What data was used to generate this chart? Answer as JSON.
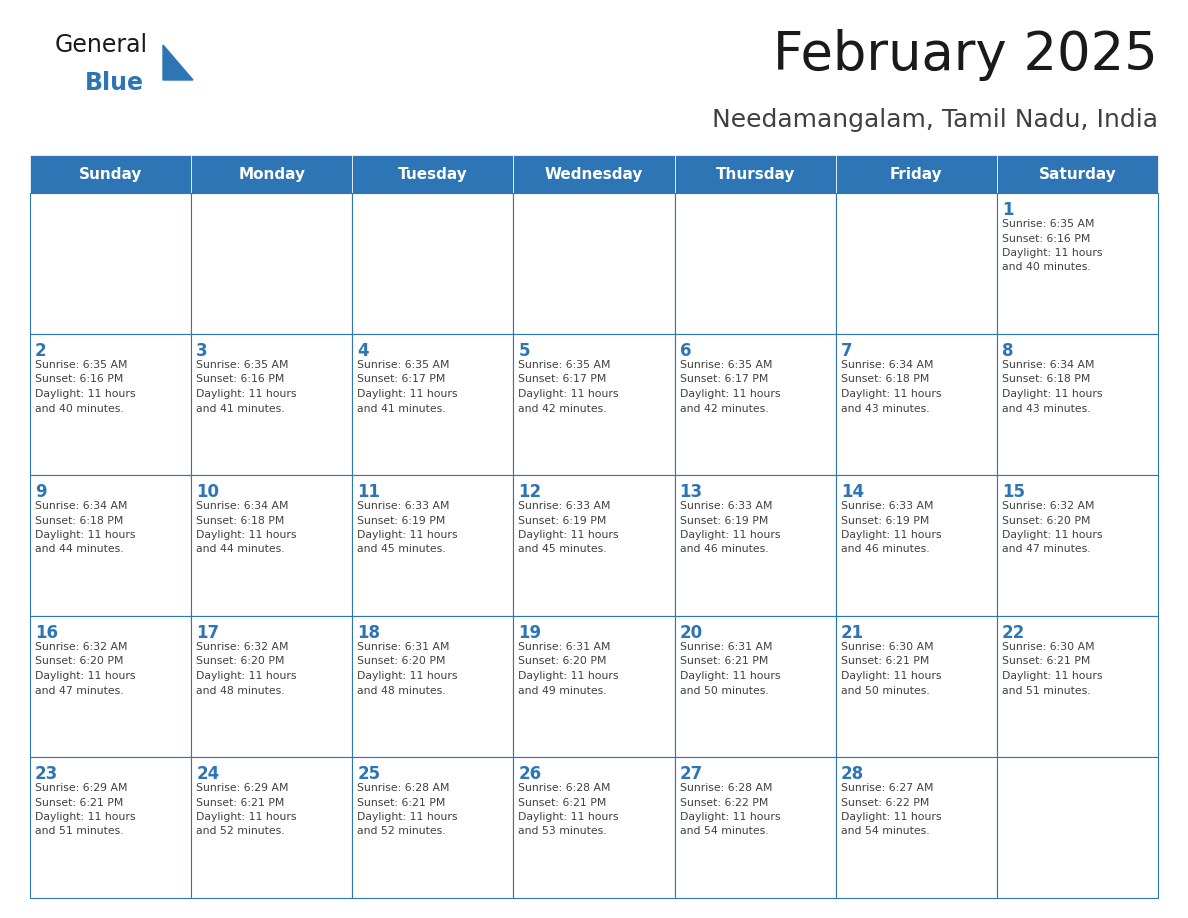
{
  "title": "February 2025",
  "subtitle": "Needamangalam, Tamil Nadu, India",
  "header_bg": "#2E75B6",
  "header_text_color": "#FFFFFF",
  "cell_bg_even": "#F2F2F2",
  "cell_bg_odd": "#FFFFFF",
  "cell_bg": "#FFFFFF",
  "border_color": "#2E75B6",
  "day_number_color": "#2E75B6",
  "cell_text_color": "#404040",
  "title_color": "#1a1a1a",
  "subtitle_color": "#404040",
  "days_of_week": [
    "Sunday",
    "Monday",
    "Tuesday",
    "Wednesday",
    "Thursday",
    "Friday",
    "Saturday"
  ],
  "weeks": [
    [
      {
        "day": null,
        "info": null
      },
      {
        "day": null,
        "info": null
      },
      {
        "day": null,
        "info": null
      },
      {
        "day": null,
        "info": null
      },
      {
        "day": null,
        "info": null
      },
      {
        "day": null,
        "info": null
      },
      {
        "day": 1,
        "info": "Sunrise: 6:35 AM\nSunset: 6:16 PM\nDaylight: 11 hours\nand 40 minutes."
      }
    ],
    [
      {
        "day": 2,
        "info": "Sunrise: 6:35 AM\nSunset: 6:16 PM\nDaylight: 11 hours\nand 40 minutes."
      },
      {
        "day": 3,
        "info": "Sunrise: 6:35 AM\nSunset: 6:16 PM\nDaylight: 11 hours\nand 41 minutes."
      },
      {
        "day": 4,
        "info": "Sunrise: 6:35 AM\nSunset: 6:17 PM\nDaylight: 11 hours\nand 41 minutes."
      },
      {
        "day": 5,
        "info": "Sunrise: 6:35 AM\nSunset: 6:17 PM\nDaylight: 11 hours\nand 42 minutes."
      },
      {
        "day": 6,
        "info": "Sunrise: 6:35 AM\nSunset: 6:17 PM\nDaylight: 11 hours\nand 42 minutes."
      },
      {
        "day": 7,
        "info": "Sunrise: 6:34 AM\nSunset: 6:18 PM\nDaylight: 11 hours\nand 43 minutes."
      },
      {
        "day": 8,
        "info": "Sunrise: 6:34 AM\nSunset: 6:18 PM\nDaylight: 11 hours\nand 43 minutes."
      }
    ],
    [
      {
        "day": 9,
        "info": "Sunrise: 6:34 AM\nSunset: 6:18 PM\nDaylight: 11 hours\nand 44 minutes."
      },
      {
        "day": 10,
        "info": "Sunrise: 6:34 AM\nSunset: 6:18 PM\nDaylight: 11 hours\nand 44 minutes."
      },
      {
        "day": 11,
        "info": "Sunrise: 6:33 AM\nSunset: 6:19 PM\nDaylight: 11 hours\nand 45 minutes."
      },
      {
        "day": 12,
        "info": "Sunrise: 6:33 AM\nSunset: 6:19 PM\nDaylight: 11 hours\nand 45 minutes."
      },
      {
        "day": 13,
        "info": "Sunrise: 6:33 AM\nSunset: 6:19 PM\nDaylight: 11 hours\nand 46 minutes."
      },
      {
        "day": 14,
        "info": "Sunrise: 6:33 AM\nSunset: 6:19 PM\nDaylight: 11 hours\nand 46 minutes."
      },
      {
        "day": 15,
        "info": "Sunrise: 6:32 AM\nSunset: 6:20 PM\nDaylight: 11 hours\nand 47 minutes."
      }
    ],
    [
      {
        "day": 16,
        "info": "Sunrise: 6:32 AM\nSunset: 6:20 PM\nDaylight: 11 hours\nand 47 minutes."
      },
      {
        "day": 17,
        "info": "Sunrise: 6:32 AM\nSunset: 6:20 PM\nDaylight: 11 hours\nand 48 minutes."
      },
      {
        "day": 18,
        "info": "Sunrise: 6:31 AM\nSunset: 6:20 PM\nDaylight: 11 hours\nand 48 minutes."
      },
      {
        "day": 19,
        "info": "Sunrise: 6:31 AM\nSunset: 6:20 PM\nDaylight: 11 hours\nand 49 minutes."
      },
      {
        "day": 20,
        "info": "Sunrise: 6:31 AM\nSunset: 6:21 PM\nDaylight: 11 hours\nand 50 minutes."
      },
      {
        "day": 21,
        "info": "Sunrise: 6:30 AM\nSunset: 6:21 PM\nDaylight: 11 hours\nand 50 minutes."
      },
      {
        "day": 22,
        "info": "Sunrise: 6:30 AM\nSunset: 6:21 PM\nDaylight: 11 hours\nand 51 minutes."
      }
    ],
    [
      {
        "day": 23,
        "info": "Sunrise: 6:29 AM\nSunset: 6:21 PM\nDaylight: 11 hours\nand 51 minutes."
      },
      {
        "day": 24,
        "info": "Sunrise: 6:29 AM\nSunset: 6:21 PM\nDaylight: 11 hours\nand 52 minutes."
      },
      {
        "day": 25,
        "info": "Sunrise: 6:28 AM\nSunset: 6:21 PM\nDaylight: 11 hours\nand 52 minutes."
      },
      {
        "day": 26,
        "info": "Sunrise: 6:28 AM\nSunset: 6:21 PM\nDaylight: 11 hours\nand 53 minutes."
      },
      {
        "day": 27,
        "info": "Sunrise: 6:28 AM\nSunset: 6:22 PM\nDaylight: 11 hours\nand 54 minutes."
      },
      {
        "day": 28,
        "info": "Sunrise: 6:27 AM\nSunset: 6:22 PM\nDaylight: 11 hours\nand 54 minutes."
      },
      {
        "day": null,
        "info": null
      }
    ]
  ],
  "logo_text_general": "General",
  "logo_text_blue": "Blue",
  "logo_color_general": "#1a1a1a",
  "logo_color_blue": "#2E75B6",
  "logo_triangle_color": "#2E75B6",
  "figsize": [
    11.88,
    9.18
  ],
  "dpi": 100
}
